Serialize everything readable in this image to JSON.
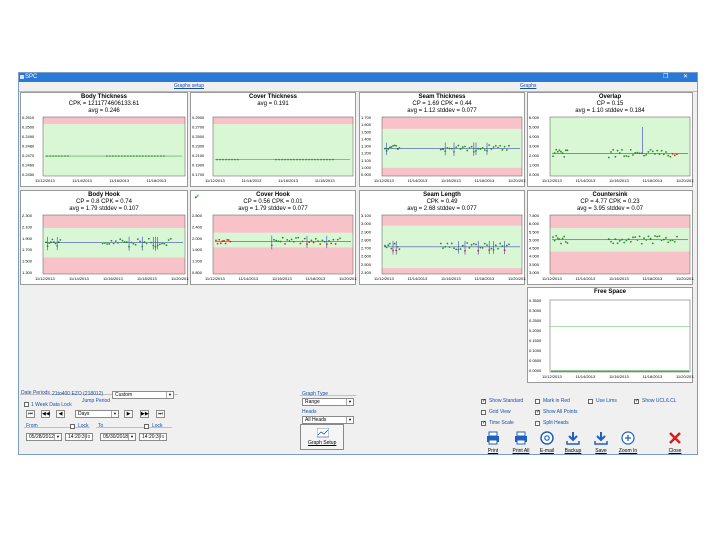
{
  "window": {
    "title": "SPC"
  },
  "tabs": [
    "Graphs setup",
    "Graphs"
  ],
  "colors": {
    "in_spec": "#d9f7d5",
    "out_spec": "#f7c3c9",
    "point": "#2a8a2a",
    "bad_point": "#e02020",
    "range": "#3a3acc",
    "center": "#2222aa"
  },
  "charts": [
    {
      "title": "Body Thickness",
      "lines": [
        "CPK = 1211774606133.61",
        "avg = 0.246"
      ],
      "check": "",
      "yticks": [
        "0.2510",
        "0.2500",
        "0.2490",
        "0.2480",
        "0.2470",
        "0.2460",
        "0.2450"
      ],
      "xticks": [
        "11/12/2013",
        "11/14/2013",
        "11/16/2013",
        "11/18/2013"
      ]
    },
    {
      "title": "Cover Thickness",
      "lines": [
        "avg = 0.191"
      ],
      "check": "",
      "yticks": [
        "0.2900",
        "0.2700",
        "0.2500",
        "0.2300",
        "0.2100",
        "0.1900",
        "0.1700"
      ],
      "xticks": [
        "11/12/2013",
        "11/14/2013",
        "11/16/2013",
        "11/18/2013"
      ]
    },
    {
      "title": "Seam Thickness",
      "lines": [
        "CP = 1.69  CPK = 0.44",
        "avg = 1.12  stddev = 0.077"
      ],
      "check": "",
      "yticks": [
        "1.700",
        "1.600",
        "1.500",
        "1.400",
        "1.300",
        "1.200",
        "1.100",
        "1.000",
        "0.900"
      ],
      "xticks": [
        "11/12/2013",
        "11/14/2013",
        "11/16/2013",
        "11/18/2013",
        "11/20/2013"
      ]
    },
    {
      "title": "Overlap",
      "lines": [
        "CP = 0.15",
        "avg = 1.10  stddev = 0.184"
      ],
      "check": "",
      "yticks": [
        "6.000",
        "5.000",
        "4.000",
        "3.000",
        "2.000",
        "1.000",
        "0.000"
      ],
      "xticks": [
        "11/12/2013",
        "11/14/2013",
        "11/16/2013",
        "11/18/2013",
        "11/20/2013"
      ]
    },
    {
      "title": "Body Hook",
      "lines": [
        "CP = 0.8  CPK = 0.74",
        "avg = 1.79  stddev = 0.107"
      ],
      "check": "",
      "yticks": [
        "2.300",
        "2.100",
        "1.900",
        "1.700",
        "1.500",
        "1.300"
      ],
      "xticks": [
        "11/12/2013",
        "11/14/2013",
        "11/16/2013",
        "11/18/2013",
        "11/20/2013"
      ]
    },
    {
      "title": "Cover Hook",
      "lines": [
        "CP = 0.56  CPK = 0.01",
        "avg = 1.79  stddev = 0.077"
      ],
      "check": "✔",
      "yticks": [
        "2.800",
        "2.400",
        "2.000",
        "1.600",
        "1.200",
        "0.800"
      ],
      "xticks": [
        "11/12/2013",
        "11/14/2013",
        "11/16/2013",
        "11/18/2013",
        "11/20/2013"
      ]
    },
    {
      "title": "Seam Length",
      "lines": [
        "CPK = 0.49",
        "avg = 2.68  stddev = 0.077"
      ],
      "check": "",
      "yticks": [
        "3.100",
        "3.000",
        "2.900",
        "2.800",
        "2.700",
        "2.600",
        "2.500",
        "2.400"
      ],
      "xticks": [
        "11/12/2013",
        "11/14/2013",
        "11/16/2013",
        "11/18/2013",
        "11/20/2013"
      ]
    },
    {
      "title": "Countersink",
      "lines": [
        "CP = 4.77  CPK = 0.23",
        "avg = 3.95  stddev = 0.07"
      ],
      "check": "",
      "yticks": [
        "7.800",
        "6.000",
        "5.500",
        "5.000",
        "4.500",
        "4.000",
        "3.500",
        "3.000"
      ],
      "xticks": [
        "11/12/2013",
        "11/14/2013",
        "11/16/2013",
        "11/18/2013",
        "11/20/2013"
      ]
    },
    {
      "title": "Free Space",
      "lines": [],
      "check": "",
      "yticks": [
        "0.3500",
        "0.3000",
        "0.2500",
        "0.2000",
        "0.1500",
        "0.1000",
        "0.0500",
        "0.0000"
      ],
      "xticks": [
        "11/12/2013",
        "11/14/2013",
        "11/16/2013",
        "11/18/2013",
        "11/20/2013"
      ]
    }
  ],
  "controls": {
    "date_periods_label": "Date Periods",
    "period_name": "21to400 EZO (218012)",
    "period_value": "Custom",
    "week_data_lock": "1 Week Data Lock",
    "jump_period": "Jump Period",
    "period_unit": "Days",
    "from_label": "From",
    "to_label": "To",
    "lock_label": "Lock",
    "from_date": "05/28/2012",
    "from_time": "14:20:39",
    "to_date": "05/30/2018",
    "to_time": "14:20:39",
    "graph_type_label": "Graph Type",
    "graph_type": "Range",
    "heads_label": "Heads",
    "heads": "All Heads",
    "graph_setup": "Graph Setup",
    "nav": [
      "⏮",
      "◀◀",
      "◀",
      "▶",
      "▶▶",
      "⏭"
    ]
  },
  "options": [
    {
      "label": "Show Standard",
      "checked": true
    },
    {
      "label": "Mark in Red",
      "checked": false
    },
    {
      "label": "Use Lims",
      "checked": false
    },
    {
      "label": "Show UCL/LCL",
      "checked": true
    },
    {
      "label": "Grid View",
      "checked": false
    },
    {
      "label": "Show All Points",
      "checked": true
    },
    {
      "label": "Time Scale",
      "checked": true
    },
    {
      "label": "Split Heads",
      "checked": false
    }
  ],
  "toolbar": [
    {
      "label": "Print",
      "icon": "printer-icon"
    },
    {
      "label": "Print All",
      "icon": "printer-icon"
    },
    {
      "label": "E-mail",
      "icon": "email-icon"
    },
    {
      "label": "Backup",
      "icon": "download-icon"
    },
    {
      "label": "Save",
      "icon": "download-icon"
    },
    {
      "label": "Zoom In",
      "icon": "zoom-in-icon"
    },
    {
      "label": "Close",
      "icon": "close-icon"
    }
  ]
}
